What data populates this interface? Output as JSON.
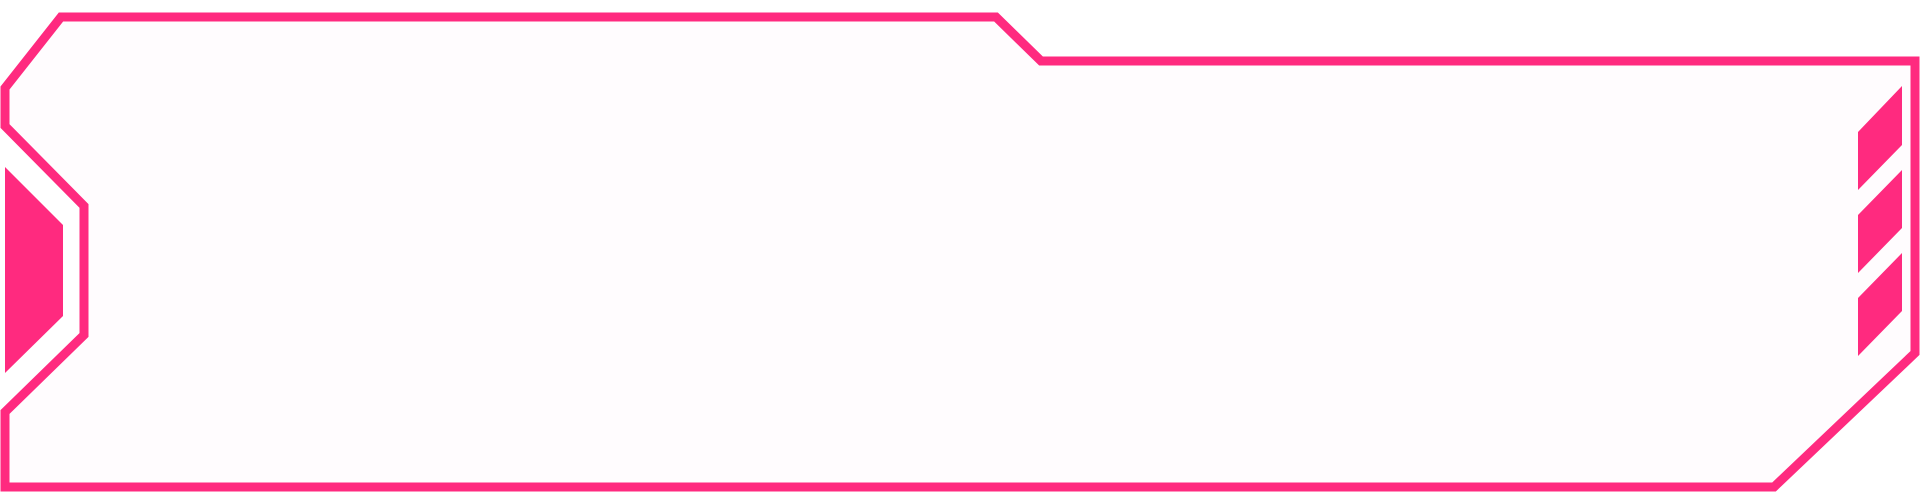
{
  "theme": {
    "accent_color": "#FF2A7F",
    "panel_fill": "#FFFCFE",
    "background": "#FFFFFF"
  },
  "frame": {
    "style": "sci-fi angular panel border",
    "left_marker": "parallelogram-marker",
    "right_markers_count": 3
  }
}
